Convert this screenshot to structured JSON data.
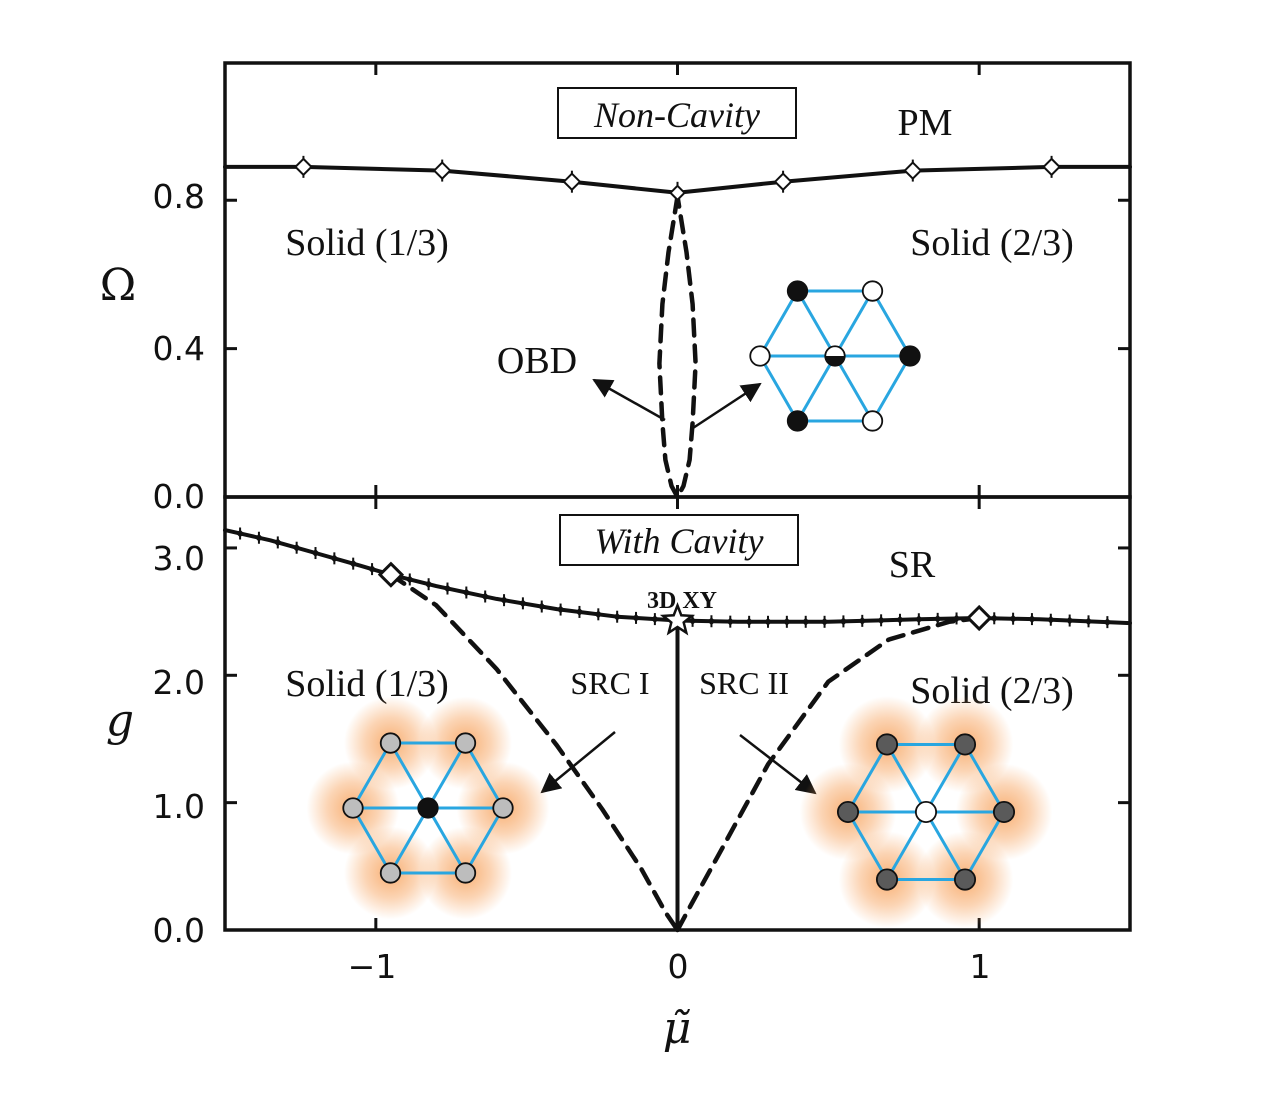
{
  "chart_data": [
    {
      "type": "line",
      "panel": "top",
      "box_label": "Non-Cavity",
      "ylabel": "Ω",
      "xlim": [
        -1.5,
        1.5
      ],
      "ylim": [
        0.0,
        1.17
      ],
      "yticks": [
        0.0,
        0.4,
        0.8
      ],
      "ytick_labels": [
        "0.0",
        "0.4",
        "0.8"
      ],
      "region_labels": {
        "pm": "PM",
        "solid_left": "Solid (1/3)",
        "solid_right": "Solid (2/3)",
        "obd": "OBD"
      },
      "series": [
        {
          "style": "solid",
          "x": [
            -1.5,
            -1.24,
            -0.78,
            -0.35,
            0.0,
            0.35,
            0.78,
            1.24,
            1.5
          ],
          "y": [
            0.89,
            0.89,
            0.88,
            0.85,
            0.82,
            0.85,
            0.88,
            0.89,
            0.89
          ],
          "markers": "diamond-open"
        },
        {
          "style": "dashed",
          "x": [
            0.0,
            -0.01,
            -0.03,
            -0.05,
            -0.06,
            -0.05,
            -0.04,
            -0.02,
            0.0,
            0.02,
            0.04,
            0.05,
            0.06,
            0.05,
            0.03,
            0.01,
            0.0
          ],
          "y": [
            0.81,
            0.76,
            0.66,
            0.52,
            0.36,
            0.2,
            0.1,
            0.03,
            0.0,
            0.03,
            0.1,
            0.2,
            0.36,
            0.52,
            0.66,
            0.76,
            0.81
          ]
        }
      ]
    },
    {
      "type": "line",
      "panel": "bottom",
      "box_label": "With Cavity",
      "ylabel": "g",
      "xlabel": "μ̃",
      "xlim": [
        -1.5,
        1.5
      ],
      "ylim": [
        0.0,
        3.4
      ],
      "xticks": [
        -1,
        0,
        1
      ],
      "xtick_labels": [
        "−1",
        "0",
        "1"
      ],
      "yticks": [
        0.0,
        1.0,
        2.0,
        3.0
      ],
      "ytick_labels": [
        "0.0",
        "1.0",
        "2.0",
        "3.0"
      ],
      "region_labels": {
        "sr": "SR",
        "solid_left": "Solid (1/3)",
        "solid_right": "Solid (2/3)",
        "src1": "SRC I",
        "src2": "SRC II",
        "critical": "3D XY"
      },
      "series": [
        {
          "style": "solid",
          "x": [
            -1.5,
            -1.35,
            -1.2,
            -1.05,
            -0.95,
            -0.8,
            -0.6,
            -0.4,
            -0.2,
            0.0,
            0.2,
            0.5,
            0.8,
            1.0,
            1.2,
            1.5
          ],
          "y": [
            3.14,
            3.06,
            2.96,
            2.86,
            2.79,
            2.7,
            2.6,
            2.52,
            2.46,
            2.43,
            2.42,
            2.42,
            2.44,
            2.45,
            2.44,
            2.41
          ]
        },
        {
          "style": "dashed",
          "x": [
            -0.95,
            -0.8,
            -0.6,
            -0.4,
            -0.25,
            -0.12,
            -0.04,
            0.0
          ],
          "y": [
            2.79,
            2.55,
            2.05,
            1.45,
            0.95,
            0.48,
            0.14,
            0.0
          ]
        },
        {
          "style": "dashed",
          "x": [
            0.0,
            0.05,
            0.15,
            0.3,
            0.5,
            0.7,
            0.9,
            1.0
          ],
          "y": [
            0.0,
            0.22,
            0.65,
            1.3,
            1.95,
            2.28,
            2.42,
            2.45
          ]
        },
        {
          "style": "solid",
          "x": [
            0.0,
            0.0
          ],
          "y": [
            0.0,
            2.43
          ]
        }
      ],
      "special_points": [
        {
          "x": -0.95,
          "y": 2.79,
          "marker": "diamond-open"
        },
        {
          "x": 1.0,
          "y": 2.45,
          "marker": "diamond-open"
        },
        {
          "x": 0.0,
          "y": 2.43,
          "marker": "star-open"
        }
      ]
    }
  ],
  "colors": {
    "lattice_bond": "#29a6e0",
    "glow": "#f7a15a",
    "ink": "#111111"
  },
  "icons": [
    "hexagonal-lattice-icon"
  ]
}
